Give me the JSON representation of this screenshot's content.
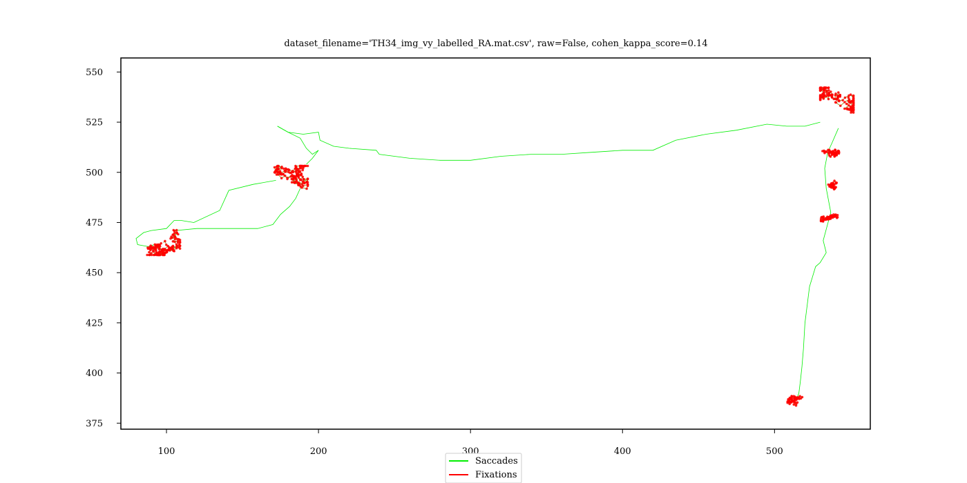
{
  "chart_data": {
    "type": "line",
    "title": "dataset_filename='TH34_img_vy_labelled_RA.mat.csv', raw=False, cohen_kappa_score=0.14",
    "xlabel": "",
    "ylabel": "",
    "xlim": [
      70,
      563
    ],
    "ylim": [
      372,
      557
    ],
    "xticks": [
      100,
      200,
      300,
      400,
      500
    ],
    "yticks": [
      375,
      400,
      425,
      450,
      475,
      500,
      525,
      550
    ],
    "grid": false,
    "legend_position": "bottom-center",
    "series": [
      {
        "name": "Saccades",
        "color": "#00ee00",
        "x": [
          173,
          180,
          190,
          200,
          201,
          210,
          220,
          238,
          240,
          260,
          280,
          300,
          320,
          340,
          360,
          380,
          400,
          420,
          435,
          455,
          475,
          495,
          508,
          520,
          530
        ],
        "y": [
          523,
          520,
          519,
          520,
          516,
          513,
          512,
          511,
          509,
          507,
          506,
          506,
          508,
          509,
          509,
          510,
          511,
          511,
          516,
          519,
          521,
          524,
          523,
          523,
          525
        ]
      },
      {
        "name": "Saccades",
        "color": "#00ee00",
        "x": [
          172,
          157,
          141,
          135,
          118,
          110,
          105,
          100,
          90,
          85,
          80,
          81,
          88,
          92
        ],
        "y": [
          496,
          494,
          491,
          481,
          475,
          476,
          476,
          472,
          471,
          470,
          467,
          464,
          463,
          464
        ]
      },
      {
        "name": "Saccades",
        "color": "#00ee00",
        "x": [
          106,
          120,
          135,
          160,
          170,
          175,
          181,
          185,
          188
        ],
        "y": [
          471,
          472,
          472,
          472,
          474,
          479,
          483,
          487,
          492
        ]
      },
      {
        "name": "Saccades",
        "color": "#00ee00",
        "x": [
          173,
          180,
          188,
          192,
          196,
          200,
          196,
          192
        ],
        "y": [
          523,
          520,
          517,
          512,
          509,
          511,
          507,
          504
        ]
      },
      {
        "name": "Saccades",
        "color": "#00ee00",
        "x": [
          542,
          538,
          535,
          533,
          534,
          537,
          532,
          534,
          530,
          527,
          525,
          523,
          522,
          520,
          519,
          518,
          517,
          516,
          515,
          513,
          510
        ],
        "y": [
          522,
          515,
          510,
          502,
          492,
          480,
          466,
          460,
          455,
          453,
          448,
          443,
          437,
          425,
          412,
          403,
          396,
          390,
          388,
          386,
          385
        ]
      },
      {
        "name": "Fixations",
        "color": "#ff0000",
        "cluster_centers": [
          {
            "x": 98,
            "y": 465
          },
          {
            "x": 182,
            "y": 497
          },
          {
            "x": 541,
            "y": 536
          },
          {
            "x": 537,
            "y": 510
          },
          {
            "x": 539,
            "y": 494
          },
          {
            "x": 536,
            "y": 477
          },
          {
            "x": 514,
            "y": 385
          }
        ]
      }
    ]
  },
  "legend": {
    "items": [
      {
        "label": "Saccades",
        "color": "#00ee00"
      },
      {
        "label": "Fixations",
        "color": "#ff0000"
      }
    ]
  }
}
